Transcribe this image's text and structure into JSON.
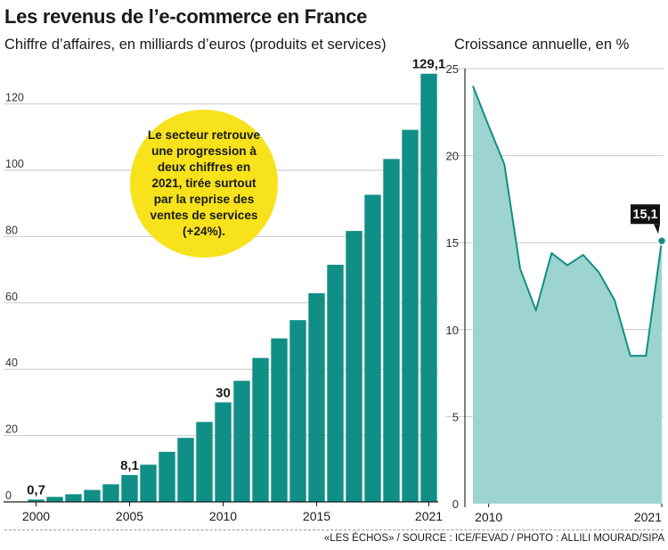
{
  "title": "Les revenus de l’e-commerce en France",
  "callout": "Le secteur retrouve une progression à deux chiffres en 2021, tirée surtout par la reprise des ventes de services (+24%).",
  "source": "«LES ÉCHOS» / SOURCE : ICE/FEVAD / PHOTO : ALLILI MOURAD/SIPA",
  "colors": {
    "bar": "#108f86",
    "area_fill": "#9ed4cf",
    "line": "#108f86",
    "highlight": "#f7e21c",
    "text": "#1a1a1a"
  },
  "chart_data": [
    {
      "type": "bar",
      "title": "Chiffre d’affaires, en milliards d’euros (produits et services)",
      "categories": [
        2000,
        2001,
        2002,
        2003,
        2004,
        2005,
        2006,
        2007,
        2008,
        2009,
        2010,
        2011,
        2012,
        2013,
        2014,
        2015,
        2016,
        2017,
        2018,
        2019,
        2020,
        2021
      ],
      "x_tick_labels": [
        "2000",
        "2005",
        "2010",
        "2015",
        "2021"
      ],
      "values": [
        0.7,
        1.5,
        2.3,
        3.6,
        5.3,
        8.1,
        11.2,
        15.1,
        19.3,
        24.1,
        30,
        36.5,
        43.4,
        49.3,
        54.8,
        62.9,
        71.5,
        81.7,
        92.6,
        103.4,
        112.2,
        129.1
      ],
      "data_labels": [
        {
          "category": 2000,
          "label": "0,7"
        },
        {
          "category": 2005,
          "label": "8,1"
        },
        {
          "category": 2010,
          "label": "30"
        },
        {
          "category": 2021,
          "label": "129,1"
        }
      ],
      "y_ticks": [
        0,
        20,
        40,
        60,
        80,
        100,
        120
      ],
      "ylim": [
        0,
        135
      ],
      "grid": true
    },
    {
      "type": "area",
      "title": "Croissance annuelle, en %",
      "x": [
        2009,
        2010,
        2011,
        2012,
        2013,
        2014,
        2015,
        2016,
        2017,
        2018,
        2019,
        2020,
        2021
      ],
      "values": [
        24.0,
        21.7,
        19.5,
        13.5,
        11.1,
        14.4,
        13.7,
        14.3,
        13.3,
        11.7,
        8.5,
        8.5,
        15.1
      ],
      "x_tick_labels": [
        "2010",
        "2021"
      ],
      "data_labels": [
        {
          "x": 2021,
          "label": "15,1"
        }
      ],
      "y_ticks": [
        0,
        5,
        10,
        15,
        20,
        25
      ],
      "ylim": [
        0,
        25
      ],
      "grid": true
    }
  ]
}
